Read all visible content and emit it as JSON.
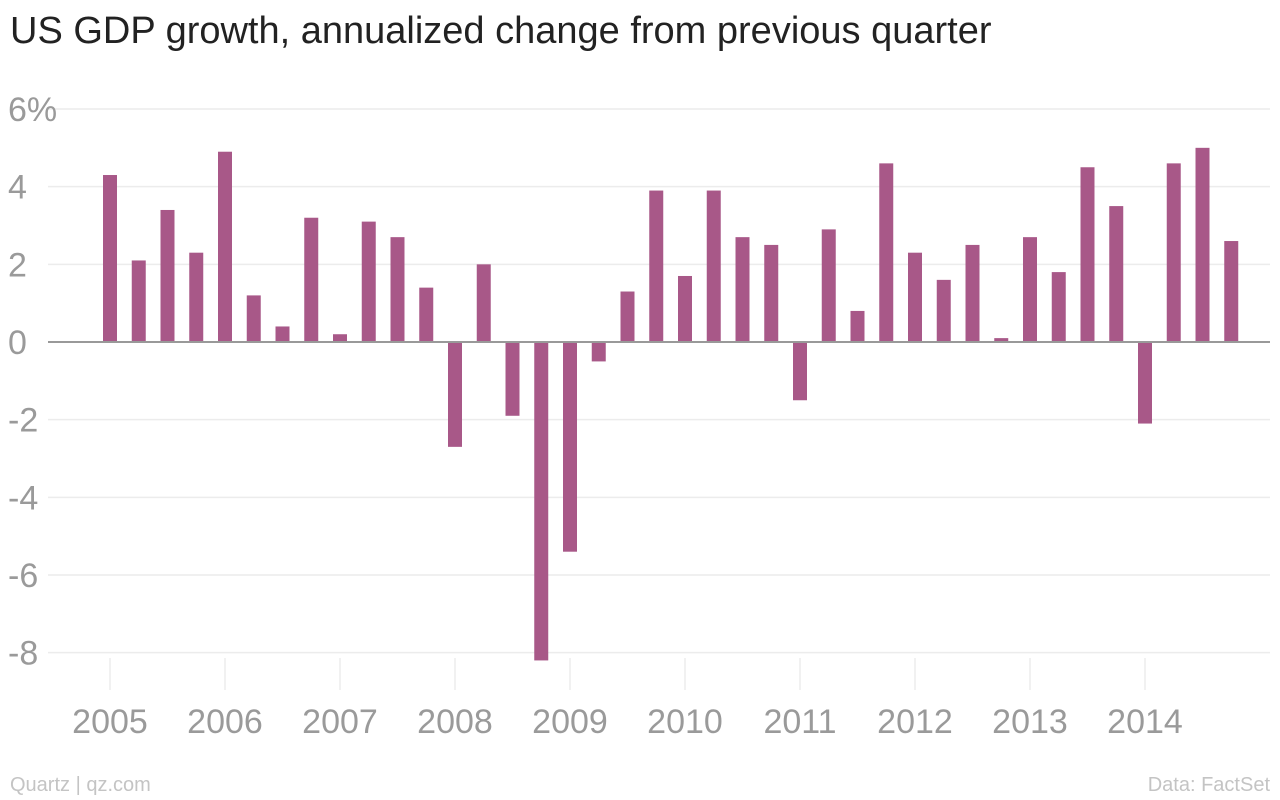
{
  "chart_data": {
    "type": "bar",
    "title": "US GDP growth, annualized change from previous quarter",
    "xlabel": "",
    "ylabel": "",
    "ylim": [
      -9,
      6
    ],
    "yticks": [
      6,
      4,
      2,
      0,
      -2,
      -4,
      -6,
      -8
    ],
    "ytick_labels": [
      "6%",
      "4",
      "2",
      "0",
      "-2",
      "-4",
      "-6",
      "-8"
    ],
    "xticks": [
      "2005",
      "2006",
      "2007",
      "2008",
      "2009",
      "2010",
      "2011",
      "2012",
      "2013",
      "2014"
    ],
    "grid": true,
    "categories": [
      "2005 Q1",
      "2005 Q2",
      "2005 Q3",
      "2005 Q4",
      "2006 Q1",
      "2006 Q2",
      "2006 Q3",
      "2006 Q4",
      "2007 Q1",
      "2007 Q2",
      "2007 Q3",
      "2007 Q4",
      "2008 Q1",
      "2008 Q2",
      "2008 Q3",
      "2008 Q4",
      "2009 Q1",
      "2009 Q2",
      "2009 Q3",
      "2009 Q4",
      "2010 Q1",
      "2010 Q2",
      "2010 Q3",
      "2010 Q4",
      "2011 Q1",
      "2011 Q2",
      "2011 Q3",
      "2011 Q4",
      "2012 Q1",
      "2012 Q2",
      "2012 Q3",
      "2012 Q4",
      "2013 Q1",
      "2013 Q2",
      "2013 Q3",
      "2013 Q4",
      "2014 Q1",
      "2014 Q2",
      "2014 Q3",
      "2014 Q4"
    ],
    "values": [
      4.3,
      2.1,
      3.4,
      2.3,
      4.9,
      1.2,
      0.4,
      3.2,
      0.2,
      3.1,
      2.7,
      1.4,
      -2.7,
      2.0,
      -1.9,
      -8.2,
      -5.4,
      -0.5,
      1.3,
      3.9,
      1.7,
      3.9,
      2.7,
      2.5,
      -1.5,
      2.9,
      0.8,
      4.6,
      2.3,
      1.6,
      2.5,
      0.1,
      2.7,
      1.8,
      4.5,
      3.5,
      -2.1,
      4.6,
      5.0,
      2.6
    ],
    "colors": {
      "bar": "#a85888",
      "grid": "#ececec",
      "zero_line": "#999999",
      "tick_text": "#9a9a9a"
    }
  },
  "footer": {
    "left": "Quartz | qz.com",
    "right": "Data: FactSet"
  }
}
